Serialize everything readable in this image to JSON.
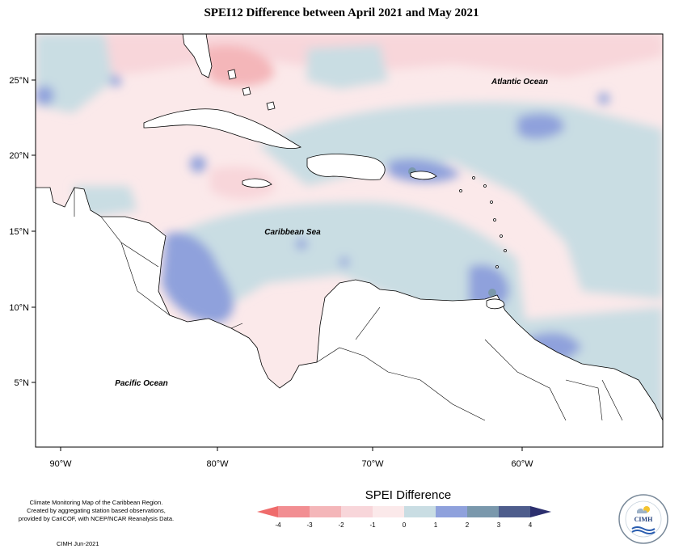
{
  "title": "SPEI12 Difference between April 2021 and May 2021",
  "map": {
    "labels": {
      "atlantic": "Atlantic Ocean",
      "caribbean": "Caribbean Sea",
      "pacific": "Pacific Ocean"
    },
    "x_ticks": [
      "90°W",
      "80°W",
      "70°W",
      "60°W"
    ],
    "y_ticks": [
      "25°N",
      "20°N",
      "15°N",
      "10°N",
      "5°N"
    ],
    "colors": {
      "land": "#ffffff",
      "border": "#000000"
    }
  },
  "credit": {
    "line1": "Climate Monitoring Map of the Caribbean Region.",
    "line2": "Created by aggregating station based observations,",
    "line3": "provided by CariCOF, with NCEP/NCAR Reanalysis Data.",
    "date": "CIMH Jun-2021"
  },
  "legend": {
    "title": "SPEI Difference",
    "ticks": [
      "-4",
      "-3",
      "-2",
      "-1",
      "0",
      "1",
      "2",
      "3",
      "4"
    ],
    "colors": [
      "#f28e92",
      "#f4b6b9",
      "#f8d6da",
      "#fbe9ea",
      "#c9dde3",
      "#8fa1dc",
      "#7a98ac",
      "#4e5d8c",
      "#2c2f6e",
      "#ef6b6b"
    ]
  },
  "logo": {
    "name": "CIMH",
    "icon": "cimh-logo-icon"
  }
}
